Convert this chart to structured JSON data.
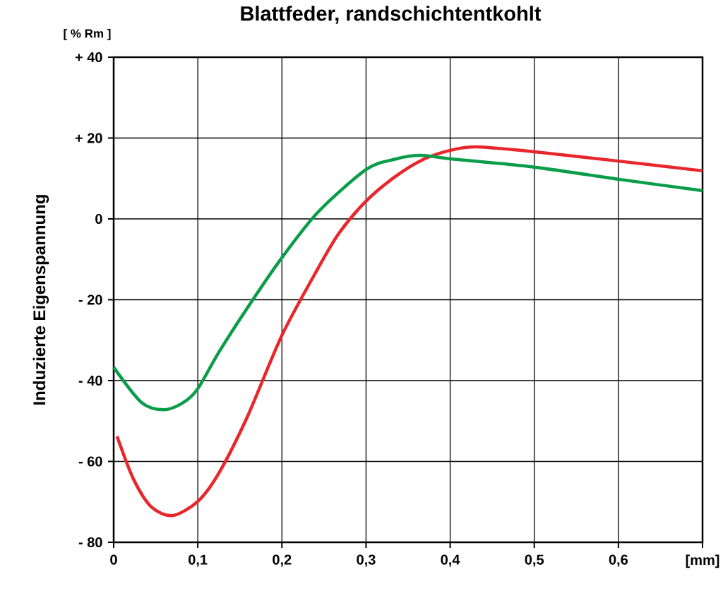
{
  "chart_data": {
    "type": "line",
    "title": "Blattfeder, randschichtentkohlt",
    "ylabel": "Induzierte Eigenspannung",
    "xlabel": "[mm]",
    "annotations": [
      "[ % Rm ]"
    ],
    "xlim": [
      0,
      0.7
    ],
    "ylim": [
      -80,
      40
    ],
    "xticks": [
      0,
      {
        "value": 0.1,
        "label": "0,1"
      },
      {
        "value": 0.2,
        "label": "0,2"
      },
      {
        "value": 0.3,
        "label": "0,3"
      },
      {
        "value": 0.4,
        "label": "0,4"
      },
      {
        "value": 0.5,
        "label": "0,5"
      },
      {
        "value": 0.6,
        "label": "0,6"
      },
      {
        "value": 0.7,
        "label": null
      }
    ],
    "yticks": [
      {
        "value": 40,
        "label": "+ 40"
      },
      {
        "value": 20,
        "label": "+ 20"
      },
      0,
      {
        "value": -20,
        "label": "- 20"
      },
      {
        "value": -40,
        "label": "- 40"
      },
      {
        "value": -60,
        "label": "- 60"
      },
      {
        "value": -80,
        "label": "- 80"
      }
    ],
    "grid": true,
    "marker": "none",
    "line_style": "solid",
    "series": [
      {
        "color": "#e8262b",
        "x": [
          0.004,
          0.024,
          0.045,
          0.07,
          0.1,
          0.125,
          0.159,
          0.2,
          0.243,
          0.268,
          0.3,
          0.335,
          0.369,
          0.403,
          0.432,
          0.5,
          0.6,
          0.7
        ],
        "values": [
          -53.8,
          -64.6,
          -71.3,
          -73.4,
          -69.9,
          -62.9,
          -48.9,
          -28.8,
          -12.2,
          -3.5,
          4.4,
          10.5,
          14.8,
          17.1,
          17.8,
          16.6,
          14.3,
          11.9
        ]
      },
      {
        "color": "#0a9d49",
        "x": [
          0,
          0.033,
          0.06,
          0.083,
          0.1,
          0.125,
          0.159,
          0.2,
          0.243,
          0.3,
          0.335,
          0.365,
          0.403,
          0.5,
          0.6,
          0.7
        ],
        "values": [
          -36.7,
          -45.4,
          -47.2,
          -45.4,
          -42,
          -33,
          -22,
          -9.6,
          1.7,
          12.2,
          14.8,
          15.7,
          14.8,
          12.8,
          9.8,
          7.0
        ]
      }
    ]
  }
}
